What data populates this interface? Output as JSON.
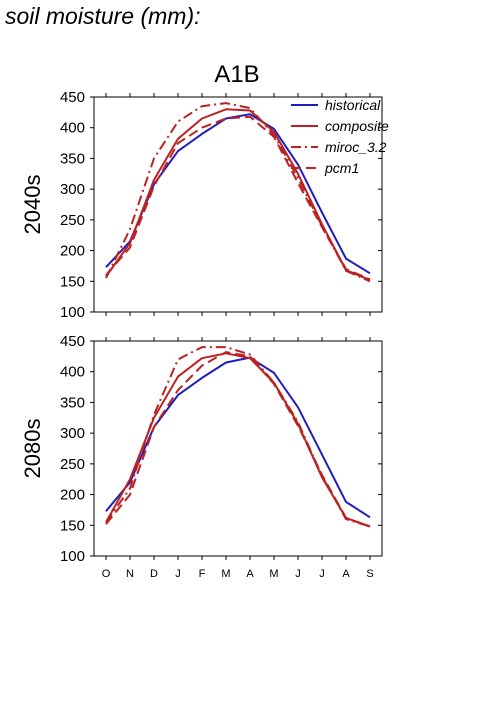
{
  "header": "soil moisture (mm):",
  "scenario": "A1B",
  "colors": {
    "historical": "#1f1fbf",
    "composite": "#bb2222",
    "miroc_3.2": "#bb2222",
    "pcm1": "#bb2222"
  },
  "chart_data": [
    {
      "type": "line",
      "title": "A1B",
      "row_label": "2040s",
      "x": [
        "O",
        "N",
        "D",
        "J",
        "F",
        "M",
        "A",
        "M",
        "J",
        "J",
        "A",
        "S"
      ],
      "ylim": [
        100,
        450
      ],
      "yticks": [
        100,
        150,
        200,
        250,
        300,
        350,
        400,
        450
      ],
      "legend": {
        "placement": "top-right",
        "entries": [
          "historical",
          "composite",
          "miroc_3.2",
          "pcm1"
        ]
      },
      "series": [
        {
          "name": "historical",
          "style": "solid-blue",
          "values": [
            173,
            215,
            308,
            362,
            390,
            415,
            422,
            398,
            340,
            262,
            187,
            163
          ]
        },
        {
          "name": "composite",
          "style": "solid-red",
          "values": [
            158,
            212,
            315,
            382,
            415,
            430,
            428,
            393,
            325,
            243,
            168,
            152
          ]
        },
        {
          "name": "miroc_3.2",
          "style": "dashdot-red",
          "values": [
            155,
            235,
            350,
            410,
            435,
            440,
            432,
            388,
            318,
            240,
            167,
            150
          ]
        },
        {
          "name": "pcm1",
          "style": "dashed-red",
          "values": [
            160,
            205,
            305,
            375,
            400,
            415,
            418,
            385,
            310,
            238,
            170,
            153
          ]
        }
      ]
    },
    {
      "type": "line",
      "row_label": "2080s",
      "x": [
        "O",
        "N",
        "D",
        "J",
        "F",
        "M",
        "A",
        "M",
        "J",
        "J",
        "A",
        "S"
      ],
      "ylim": [
        100,
        450
      ],
      "yticks": [
        100,
        150,
        200,
        250,
        300,
        350,
        400,
        450
      ],
      "series": [
        {
          "name": "historical",
          "style": "solid-blue",
          "values": [
            173,
            220,
            310,
            362,
            390,
            415,
            423,
            398,
            342,
            265,
            188,
            163
          ]
        },
        {
          "name": "composite",
          "style": "solid-red",
          "values": [
            155,
            225,
            325,
            392,
            422,
            430,
            422,
            382,
            315,
            228,
            162,
            148
          ]
        },
        {
          "name": "miroc_3.2",
          "style": "dashdot-red",
          "values": [
            155,
            210,
            330,
            420,
            440,
            440,
            428,
            382,
            318,
            230,
            160,
            148
          ]
        },
        {
          "name": "pcm1",
          "style": "dashed-red",
          "values": [
            152,
            200,
            310,
            370,
            410,
            432,
            425,
            380,
            312,
            232,
            162,
            148
          ]
        }
      ]
    }
  ]
}
